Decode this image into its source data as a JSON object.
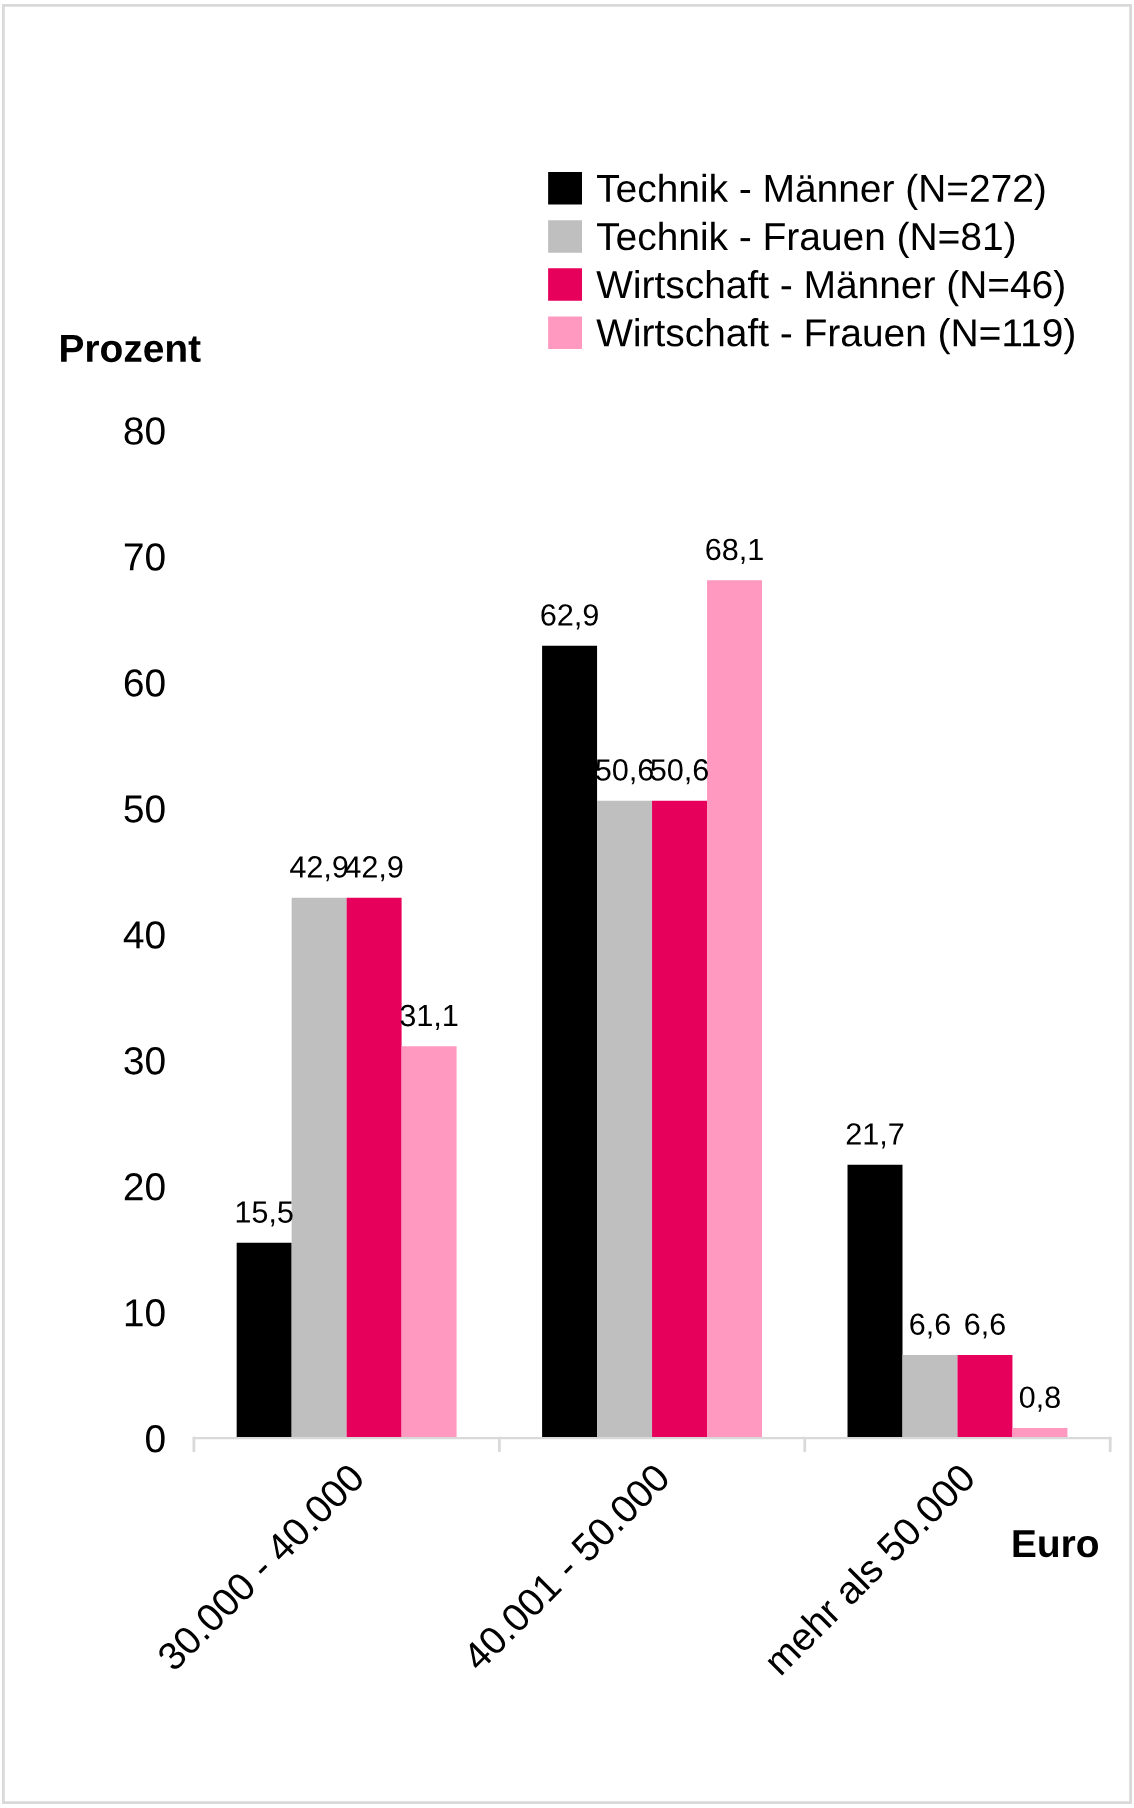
{
  "chart_data": {
    "type": "bar",
    "ylabel": "Prozent",
    "xlabel": "Euro",
    "categories": [
      "30.000 - 40.000",
      "40.001 - 50.000",
      "mehr als 50.000"
    ],
    "series": [
      {
        "name": "Technik - Männer (N=272)",
        "color": "#000000",
        "values": [
          15.5,
          62.9,
          21.7
        ],
        "value_labels": [
          "15,5",
          "62,9",
          "21,7"
        ]
      },
      {
        "name": "Technik - Frauen (N=81)",
        "color": "#bfbfbf",
        "values": [
          42.9,
          50.6,
          6.6
        ],
        "value_labels": [
          "42,9",
          "50,6",
          "6,6"
        ]
      },
      {
        "name": "Wirtschaft - Männer (N=46)",
        "color": "#e6005c",
        "values": [
          42.9,
          50.6,
          6.6
        ],
        "value_labels": [
          "42,9",
          "50,6",
          "6,6"
        ]
      },
      {
        "name": "Wirtschaft - Frauen (N=119)",
        "color": "#ff99c0",
        "values": [
          31.1,
          68.1,
          0.8
        ],
        "value_labels": [
          "31,1",
          "68,1",
          "0,8"
        ]
      }
    ],
    "ylim": [
      0,
      80
    ],
    "yticks": [
      0,
      10,
      20,
      30,
      40,
      50,
      60,
      70,
      80
    ],
    "grid": false,
    "legend": "top"
  }
}
